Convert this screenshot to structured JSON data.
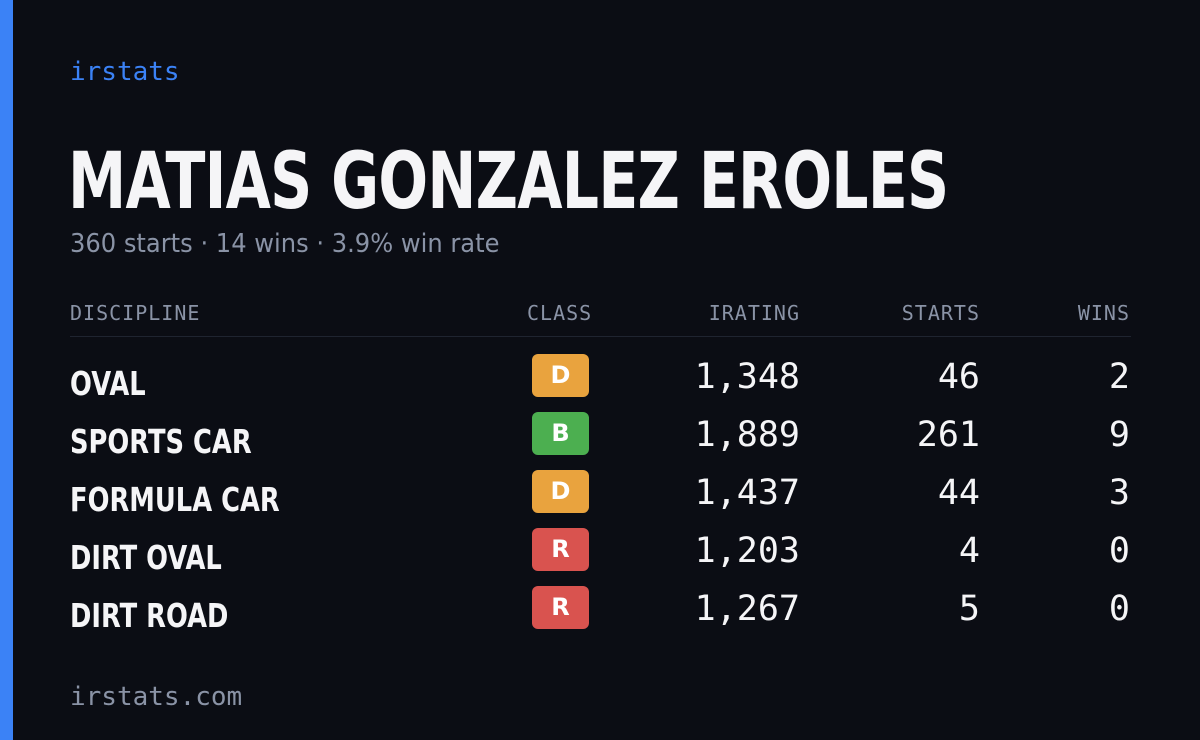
{
  "brand": "irstats",
  "driver": {
    "name": "MATIAS GONZALEZ EROLES",
    "summary": "360 starts · 14 wins · 3.9% win rate"
  },
  "table": {
    "headers": {
      "discipline": "DISCIPLINE",
      "class": "CLASS",
      "irating": "IRATING",
      "starts": "STARTS",
      "wins": "WINS"
    },
    "rows": [
      {
        "discipline": "OVAL",
        "class": "D",
        "class_color": "#e9a33e",
        "irating": "1,348",
        "starts": "46",
        "wins": "2"
      },
      {
        "discipline": "SPORTS CAR",
        "class": "B",
        "class_color": "#4caf50",
        "irating": "1,889",
        "starts": "261",
        "wins": "9"
      },
      {
        "discipline": "FORMULA CAR",
        "class": "D",
        "class_color": "#e9a33e",
        "irating": "1,437",
        "starts": "44",
        "wins": "3"
      },
      {
        "discipline": "DIRT OVAL",
        "class": "R",
        "class_color": "#d9534f",
        "irating": "1,203",
        "starts": "4",
        "wins": "0"
      },
      {
        "discipline": "DIRT ROAD",
        "class": "R",
        "class_color": "#d9534f",
        "irating": "1,267",
        "starts": "5",
        "wins": "0"
      }
    ]
  },
  "footer": "irstats.com",
  "colors": {
    "accent": "#3b82f6",
    "background": "#0b0d14",
    "text": "#f5f5f7",
    "muted": "#8a93a6"
  }
}
